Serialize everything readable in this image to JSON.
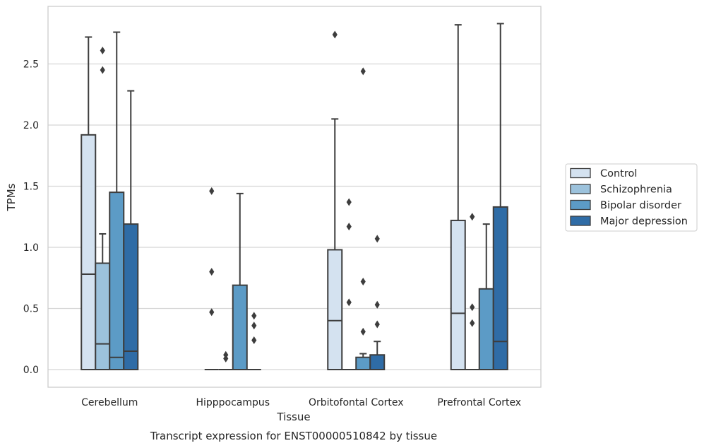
{
  "chart_data": {
    "type": "box",
    "caption": "Transcript expression for ENST00000510842 by tissue",
    "xlabel": "Tissue",
    "ylabel": "TPMs",
    "ylim": [
      -0.14,
      2.99
    ],
    "yticks": [
      0.0,
      0.5,
      1.0,
      1.5,
      2.0,
      2.5
    ],
    "ytick_labels": [
      "0.0",
      "0.5",
      "1.0",
      "1.5",
      "2.0",
      "2.5"
    ],
    "grid": "horizontal",
    "legend_position": "right",
    "categories": [
      "Cerebellum",
      "Hipppocampus",
      "Orbitofontal Cortex",
      "Prefrontal Cortex"
    ],
    "series": [
      {
        "name": "Control",
        "color": "#d4e2f0",
        "boxes": [
          {
            "q1": 0.0,
            "median": 0.78,
            "q3": 1.92,
            "whisker_low": 0.0,
            "whisker_high": 2.72,
            "outliers": []
          },
          {
            "q1": 0.0,
            "median": 0.0,
            "q3": 0.0,
            "whisker_low": 0.0,
            "whisker_high": 0.0,
            "outliers": [
              1.46,
              0.8,
              0.47
            ]
          },
          {
            "q1": 0.0,
            "median": 0.4,
            "q3": 0.98,
            "whisker_low": 0.0,
            "whisker_high": 2.05,
            "outliers": [
              2.74
            ]
          },
          {
            "q1": 0.0,
            "median": 0.46,
            "q3": 1.22,
            "whisker_low": 0.0,
            "whisker_high": 2.82,
            "outliers": []
          }
        ]
      },
      {
        "name": "Schizophrenia",
        "color": "#9cc2dc",
        "boxes": [
          {
            "q1": 0.0,
            "median": 0.21,
            "q3": 0.87,
            "whisker_low": 0.0,
            "whisker_high": 1.11,
            "outliers": [
              2.61,
              2.45
            ]
          },
          {
            "q1": 0.0,
            "median": 0.0,
            "q3": 0.0,
            "whisker_low": 0.0,
            "whisker_high": 0.0,
            "outliers": [
              0.12,
              0.09
            ]
          },
          {
            "q1": 0.0,
            "median": 0.0,
            "q3": 0.0,
            "whisker_low": 0.0,
            "whisker_high": 0.0,
            "outliers": [
              1.37,
              1.17,
              0.55
            ]
          },
          {
            "q1": 0.0,
            "median": 0.0,
            "q3": 0.0,
            "whisker_low": 0.0,
            "whisker_high": 0.0,
            "outliers": [
              1.25,
              0.51,
              0.38
            ]
          }
        ]
      },
      {
        "name": "Bipolar disorder",
        "color": "#5c9bc6",
        "boxes": [
          {
            "q1": 0.0,
            "median": 0.1,
            "q3": 1.45,
            "whisker_low": 0.0,
            "whisker_high": 2.76,
            "outliers": []
          },
          {
            "q1": 0.0,
            "median": 0.0,
            "q3": 0.69,
            "whisker_low": 0.0,
            "whisker_high": 1.44,
            "outliers": []
          },
          {
            "q1": 0.0,
            "median": 0.0,
            "q3": 0.1,
            "whisker_low": 0.0,
            "whisker_high": 0.13,
            "outliers": [
              2.44,
              0.72,
              0.31
            ]
          },
          {
            "q1": 0.0,
            "median": 0.0,
            "q3": 0.66,
            "whisker_low": 0.0,
            "whisker_high": 1.19,
            "outliers": []
          }
        ]
      },
      {
        "name": "Major depression",
        "color": "#2f6ca6",
        "boxes": [
          {
            "q1": 0.0,
            "median": 0.15,
            "q3": 1.19,
            "whisker_low": 0.0,
            "whisker_high": 2.28,
            "outliers": []
          },
          {
            "q1": 0.0,
            "median": 0.0,
            "q3": 0.0,
            "whisker_low": 0.0,
            "whisker_high": 0.0,
            "outliers": [
              0.44,
              0.36,
              0.24
            ]
          },
          {
            "q1": 0.0,
            "median": 0.0,
            "q3": 0.12,
            "whisker_low": 0.0,
            "whisker_high": 0.23,
            "outliers": [
              1.07,
              0.53,
              0.37
            ]
          },
          {
            "q1": 0.0,
            "median": 0.23,
            "q3": 1.33,
            "whisker_low": 0.0,
            "whisker_high": 2.83,
            "outliers": []
          }
        ]
      }
    ]
  }
}
